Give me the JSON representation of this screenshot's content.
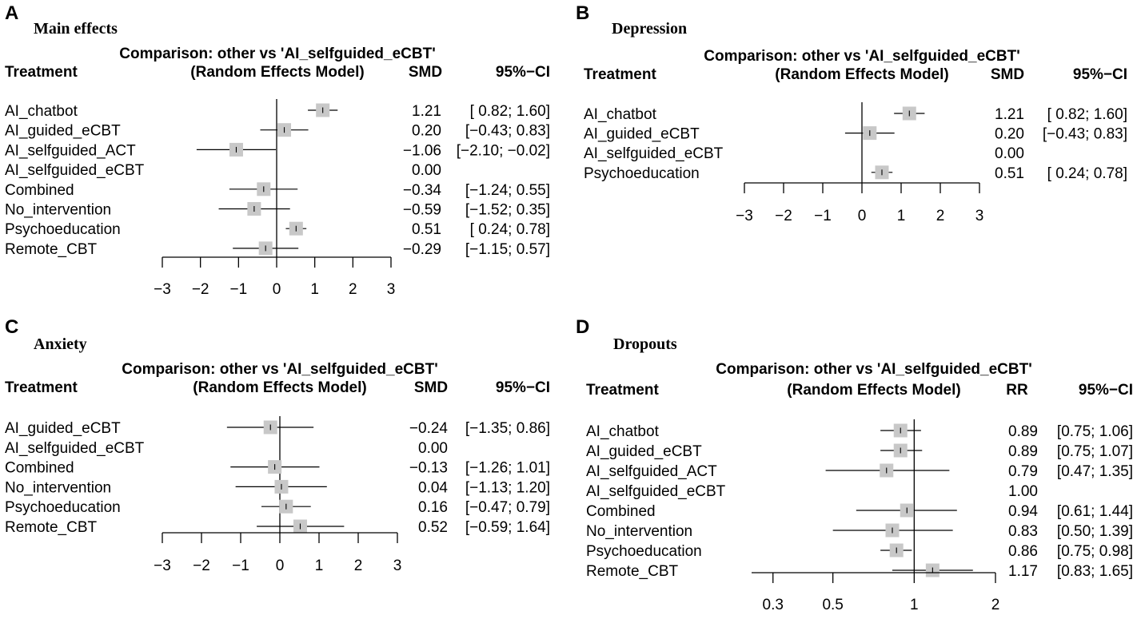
{
  "chart_data": [
    {
      "type": "forest",
      "panel": "A",
      "title": "Main effects",
      "comparison": "Comparison: other vs 'AI_selfguided_eCBT'",
      "model": "(Random Effects Model)",
      "col_treatment": "Treatment",
      "col_measure": "SMD",
      "col_ci": "95%−CI",
      "xlim": [
        -3,
        3
      ],
      "scale": "linear",
      "ref_value": 0,
      "ticks": [
        -3,
        -2,
        -1,
        0,
        1,
        2,
        3
      ],
      "tick_labels": [
        "−3",
        "−2",
        "−1",
        "0",
        "1",
        "2",
        "3"
      ],
      "rows": [
        {
          "label": "AI_chatbot",
          "est": 1.21,
          "lo": 0.82,
          "hi": 1.6,
          "est_text": "1.21",
          "ci_text": "[ 0.82;  1.60]"
        },
        {
          "label": "AI_guided_eCBT",
          "est": 0.2,
          "lo": -0.43,
          "hi": 0.83,
          "est_text": "0.20",
          "ci_text": "[−0.43;  0.83]"
        },
        {
          "label": "AI_selfguided_ACT",
          "est": -1.06,
          "lo": -2.1,
          "hi": -0.02,
          "est_text": "−1.06",
          "ci_text": "[−2.10; −0.02]"
        },
        {
          "label": "AI_selfguided_eCBT",
          "est": null,
          "lo": null,
          "hi": null,
          "est_text": "0.00",
          "ci_text": ""
        },
        {
          "label": "Combined",
          "est": -0.34,
          "lo": -1.24,
          "hi": 0.55,
          "est_text": "−0.34",
          "ci_text": "[−1.24;  0.55]"
        },
        {
          "label": "No_intervention",
          "est": -0.59,
          "lo": -1.52,
          "hi": 0.35,
          "est_text": "−0.59",
          "ci_text": "[−1.52;  0.35]"
        },
        {
          "label": "Psychoeducation",
          "est": 0.51,
          "lo": 0.24,
          "hi": 0.78,
          "est_text": "0.51",
          "ci_text": "[ 0.24;  0.78]"
        },
        {
          "label": "Remote_CBT",
          "est": -0.29,
          "lo": -1.15,
          "hi": 0.57,
          "est_text": "−0.29",
          "ci_text": "[−1.15;  0.57]"
        }
      ]
    },
    {
      "type": "forest",
      "panel": "B",
      "title": "Depression",
      "comparison": "Comparison: other vs 'AI_selfguided_eCBT'",
      "model": "(Random Effects Model)",
      "col_treatment": "Treatment",
      "col_measure": "SMD",
      "col_ci": "95%−CI",
      "xlim": [
        -3,
        3
      ],
      "scale": "linear",
      "ref_value": 0,
      "ticks": [
        -3,
        -2,
        -1,
        0,
        1,
        2,
        3
      ],
      "tick_labels": [
        "−3",
        "−2",
        "−1",
        "0",
        "1",
        "2",
        "3"
      ],
      "rows": [
        {
          "label": "AI_chatbot",
          "est": 1.21,
          "lo": 0.82,
          "hi": 1.6,
          "est_text": "1.21",
          "ci_text": "[ 0.82; 1.60]"
        },
        {
          "label": "AI_guided_eCBT",
          "est": 0.2,
          "lo": -0.43,
          "hi": 0.83,
          "est_text": "0.20",
          "ci_text": "[−0.43; 0.83]"
        },
        {
          "label": "AI_selfguided_eCBT",
          "est": null,
          "lo": null,
          "hi": null,
          "est_text": "0.00",
          "ci_text": ""
        },
        {
          "label": "Psychoeducation",
          "est": 0.51,
          "lo": 0.24,
          "hi": 0.78,
          "est_text": "0.51",
          "ci_text": "[ 0.24; 0.78]"
        }
      ]
    },
    {
      "type": "forest",
      "panel": "C",
      "title": "Anxiety",
      "comparison": "Comparison: other vs 'AI_selfguided_eCBT'",
      "model": "(Random Effects Model)",
      "col_treatment": "Treatment",
      "col_measure": "SMD",
      "col_ci": "95%−CI",
      "xlim": [
        -3,
        3
      ],
      "scale": "linear",
      "ref_value": 0,
      "ticks": [
        -3,
        -2,
        -1,
        0,
        1,
        2,
        3
      ],
      "tick_labels": [
        "−3",
        "−2",
        "−1",
        "0",
        "1",
        "2",
        "3"
      ],
      "rows": [
        {
          "label": "AI_guided_eCBT",
          "est": -0.24,
          "lo": -1.35,
          "hi": 0.86,
          "est_text": "−0.24",
          "ci_text": "[−1.35; 0.86]"
        },
        {
          "label": "AI_selfguided_eCBT",
          "est": null,
          "lo": null,
          "hi": null,
          "est_text": "0.00",
          "ci_text": ""
        },
        {
          "label": "Combined",
          "est": -0.13,
          "lo": -1.26,
          "hi": 1.01,
          "est_text": "−0.13",
          "ci_text": "[−1.26; 1.01]"
        },
        {
          "label": "No_intervention",
          "est": 0.04,
          "lo": -1.13,
          "hi": 1.2,
          "est_text": "0.04",
          "ci_text": "[−1.13; 1.20]"
        },
        {
          "label": "Psychoeducation",
          "est": 0.16,
          "lo": -0.47,
          "hi": 0.79,
          "est_text": "0.16",
          "ci_text": "[−0.47; 0.79]"
        },
        {
          "label": "Remote_CBT",
          "est": 0.52,
          "lo": -0.59,
          "hi": 1.64,
          "est_text": "0.52",
          "ci_text": "[−0.59; 1.64]"
        }
      ]
    },
    {
      "type": "forest",
      "panel": "D",
      "title": "Dropouts",
      "comparison": "Comparison: other vs 'AI_selfguided_eCBT'",
      "model": "(Random Effects Model)",
      "col_treatment": "Treatment",
      "col_measure": "RR",
      "col_ci": "95%−CI",
      "xlim": [
        0.25,
        2
      ],
      "scale": "log",
      "ref_value": 1,
      "ticks": [
        0.3,
        0.5,
        1,
        2
      ],
      "tick_labels": [
        "0.3",
        "0.5",
        "1",
        "2"
      ],
      "rows": [
        {
          "label": "AI_chatbot",
          "est": 0.89,
          "lo": 0.75,
          "hi": 1.06,
          "est_text": "0.89",
          "ci_text": "[0.75; 1.06]"
        },
        {
          "label": "AI_guided_eCBT",
          "est": 0.89,
          "lo": 0.75,
          "hi": 1.07,
          "est_text": "0.89",
          "ci_text": "[0.75; 1.07]"
        },
        {
          "label": "AI_selfguided_ACT",
          "est": 0.79,
          "lo": 0.47,
          "hi": 1.35,
          "est_text": "0.79",
          "ci_text": "[0.47; 1.35]"
        },
        {
          "label": "AI_selfguided_eCBT",
          "est": null,
          "lo": null,
          "hi": null,
          "est_text": "1.00",
          "ci_text": ""
        },
        {
          "label": "Combined",
          "est": 0.94,
          "lo": 0.61,
          "hi": 1.44,
          "est_text": "0.94",
          "ci_text": "[0.61; 1.44]"
        },
        {
          "label": "No_intervention",
          "est": 0.83,
          "lo": 0.5,
          "hi": 1.39,
          "est_text": "0.83",
          "ci_text": "[0.50; 1.39]"
        },
        {
          "label": "Psychoeducation",
          "est": 0.86,
          "lo": 0.75,
          "hi": 0.98,
          "est_text": "0.86",
          "ci_text": "[0.75; 0.98]"
        },
        {
          "label": "Remote_CBT",
          "est": 1.17,
          "lo": 0.83,
          "hi": 1.65,
          "est_text": "1.17",
          "ci_text": "[0.83; 1.65]"
        }
      ]
    }
  ]
}
